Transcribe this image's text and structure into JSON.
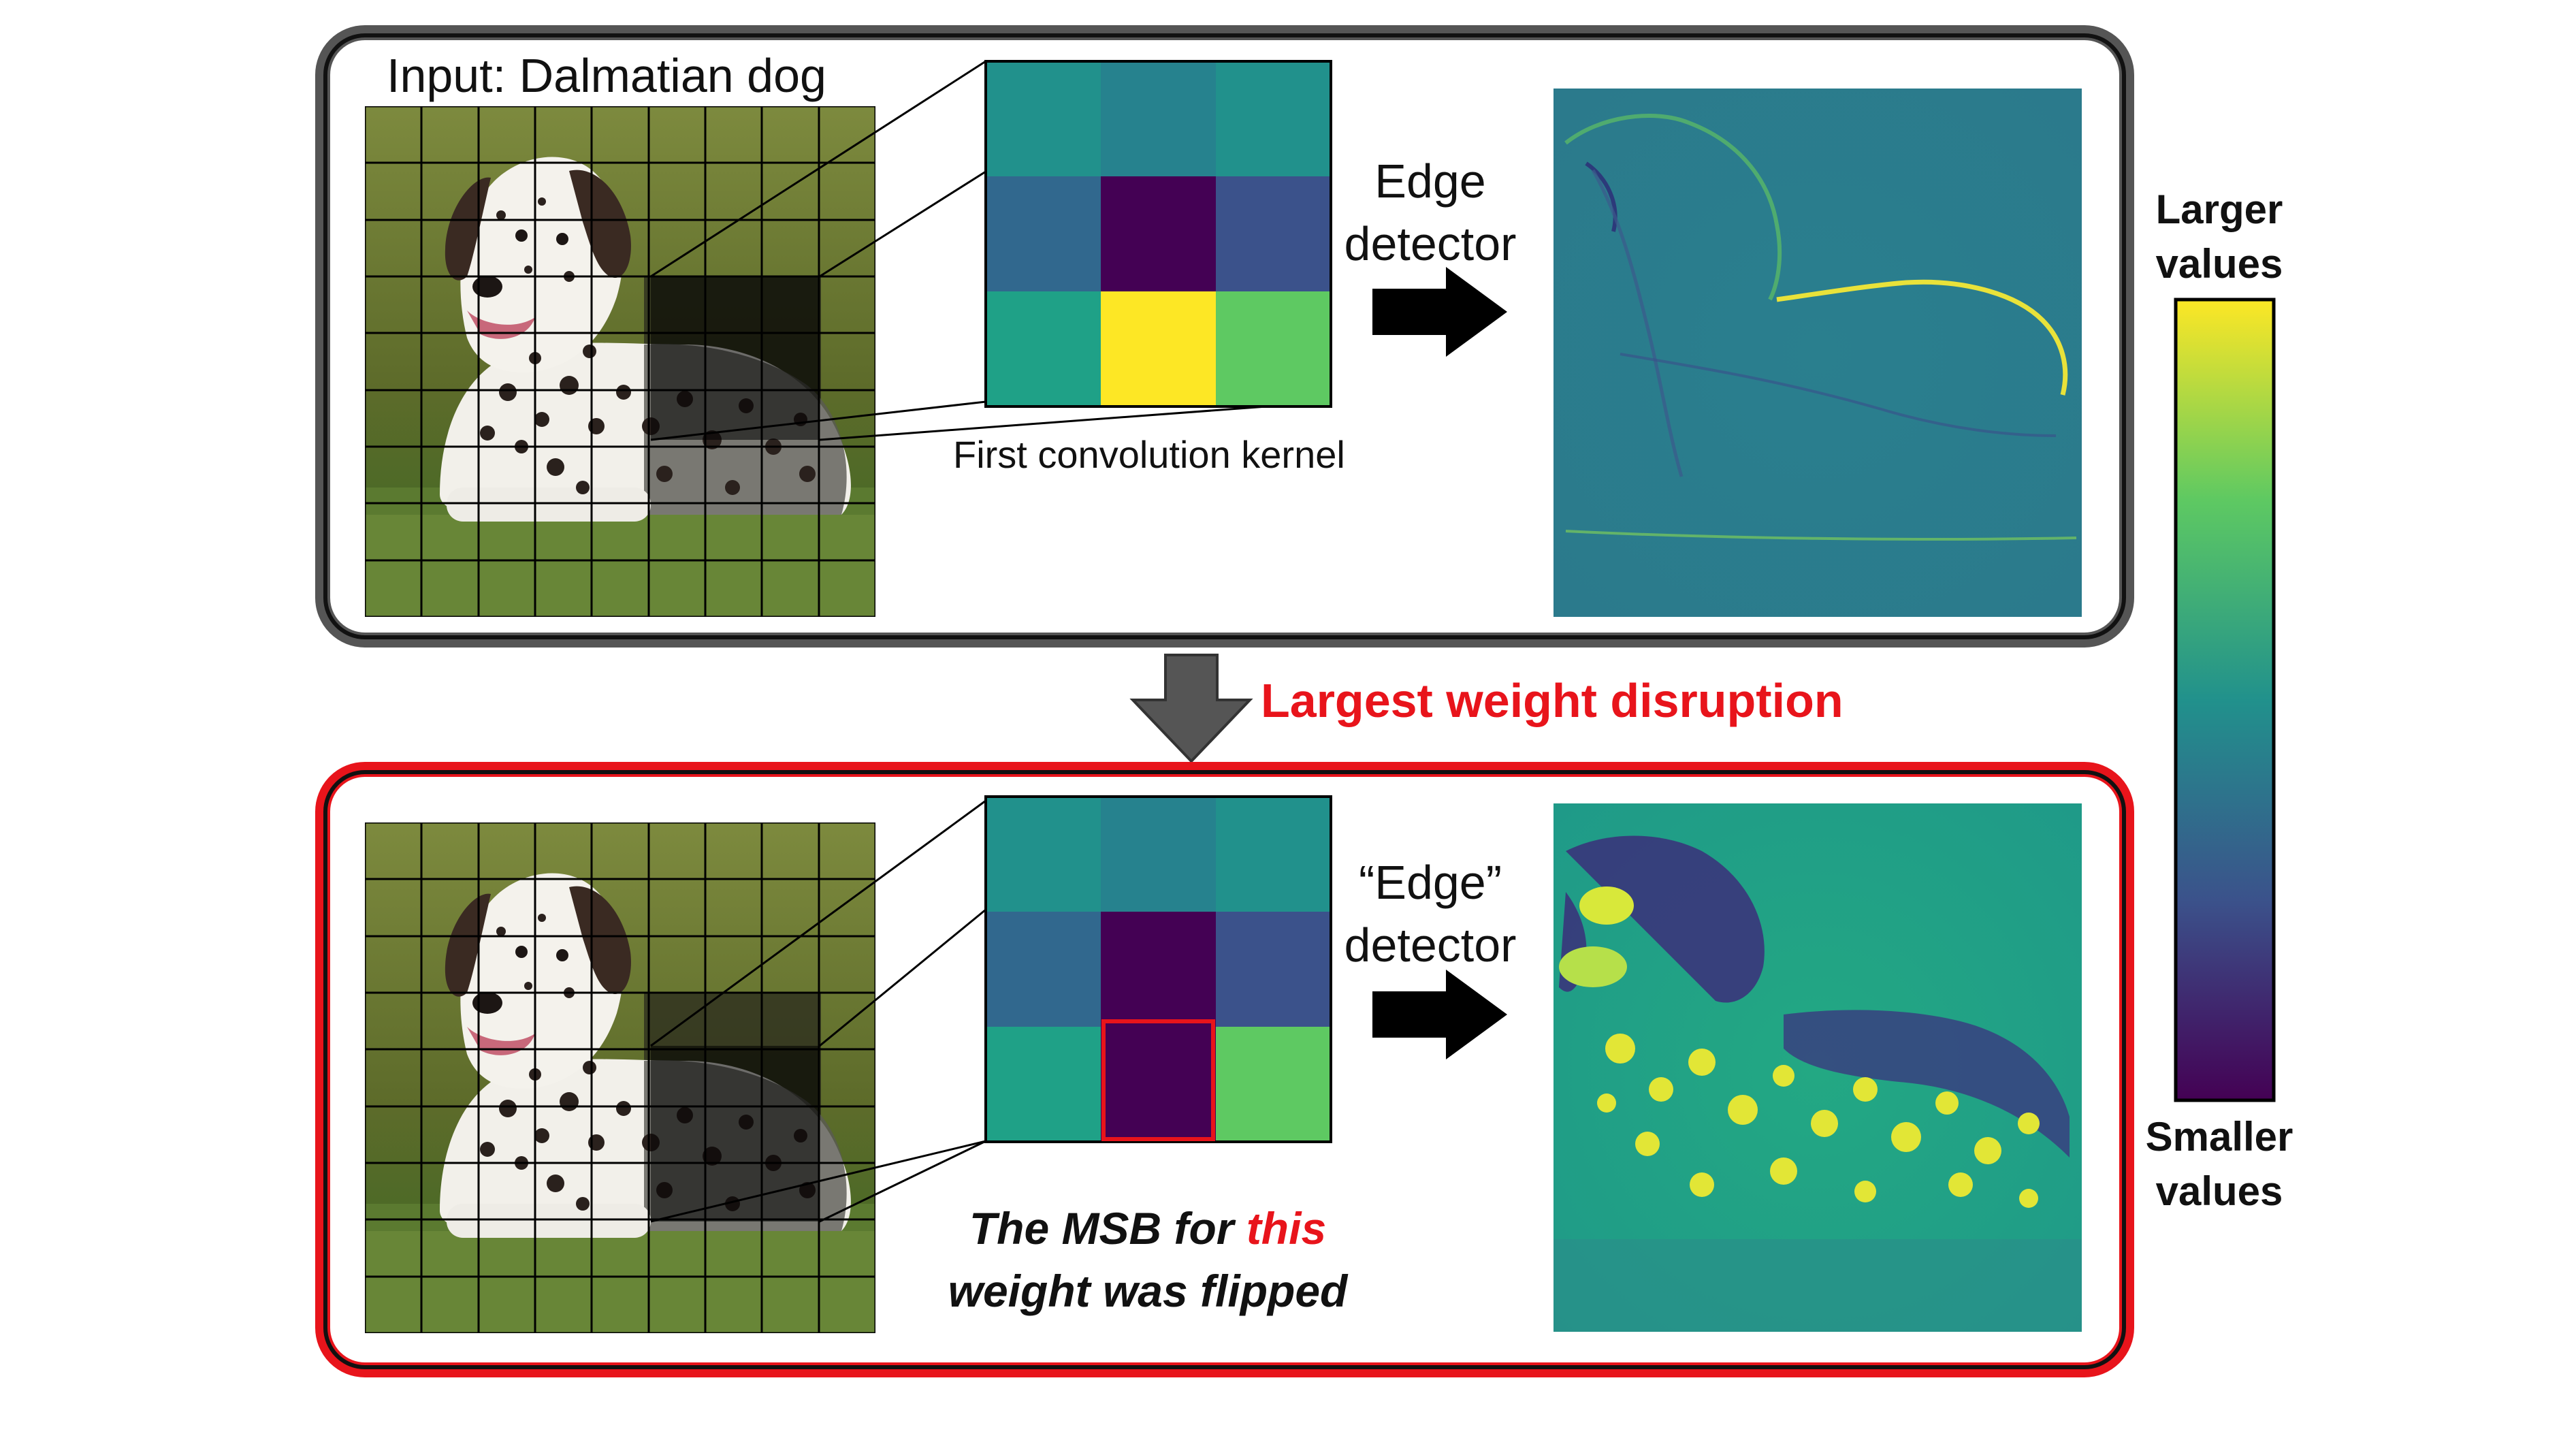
{
  "top_panel": {
    "input_title": "Input: Dalmatian dog",
    "kernel_caption": "First convolution kernel",
    "detector_line1": "Edge",
    "detector_line2": "detector"
  },
  "transition": {
    "label": "Largest weight disruption"
  },
  "bottom_panel": {
    "detector_line1": "“Edge”",
    "detector_line2": "detector",
    "caption_part1": "The MSB for ",
    "caption_highlight": "this",
    "caption_part2": "weight was flipped"
  },
  "colorbar": {
    "top_line1": "Larger",
    "top_line2": "values",
    "bottom_line1": "Smaller",
    "bottom_line2": "values",
    "colors": [
      "#440154",
      "#3b528b",
      "#21918c",
      "#5ec962",
      "#fde725"
    ]
  },
  "kernels": {
    "original": [
      "#21918c",
      "#26828e",
      "#21918c",
      "#31688e",
      "#440154",
      "#3b528b",
      "#1fa187",
      "#fde725",
      "#5ec962"
    ],
    "flipped": [
      "#21918c",
      "#26828e",
      "#21918c",
      "#31688e",
      "#440154",
      "#3b528b",
      "#1fa187",
      "#440154",
      "#5ec962"
    ],
    "flipped_highlight_color": "#e8141b"
  },
  "palette": {
    "accent_red": "#e8141b",
    "panel_border": "#222222",
    "arrow_gray": "#555555",
    "background": "#ffffff"
  }
}
